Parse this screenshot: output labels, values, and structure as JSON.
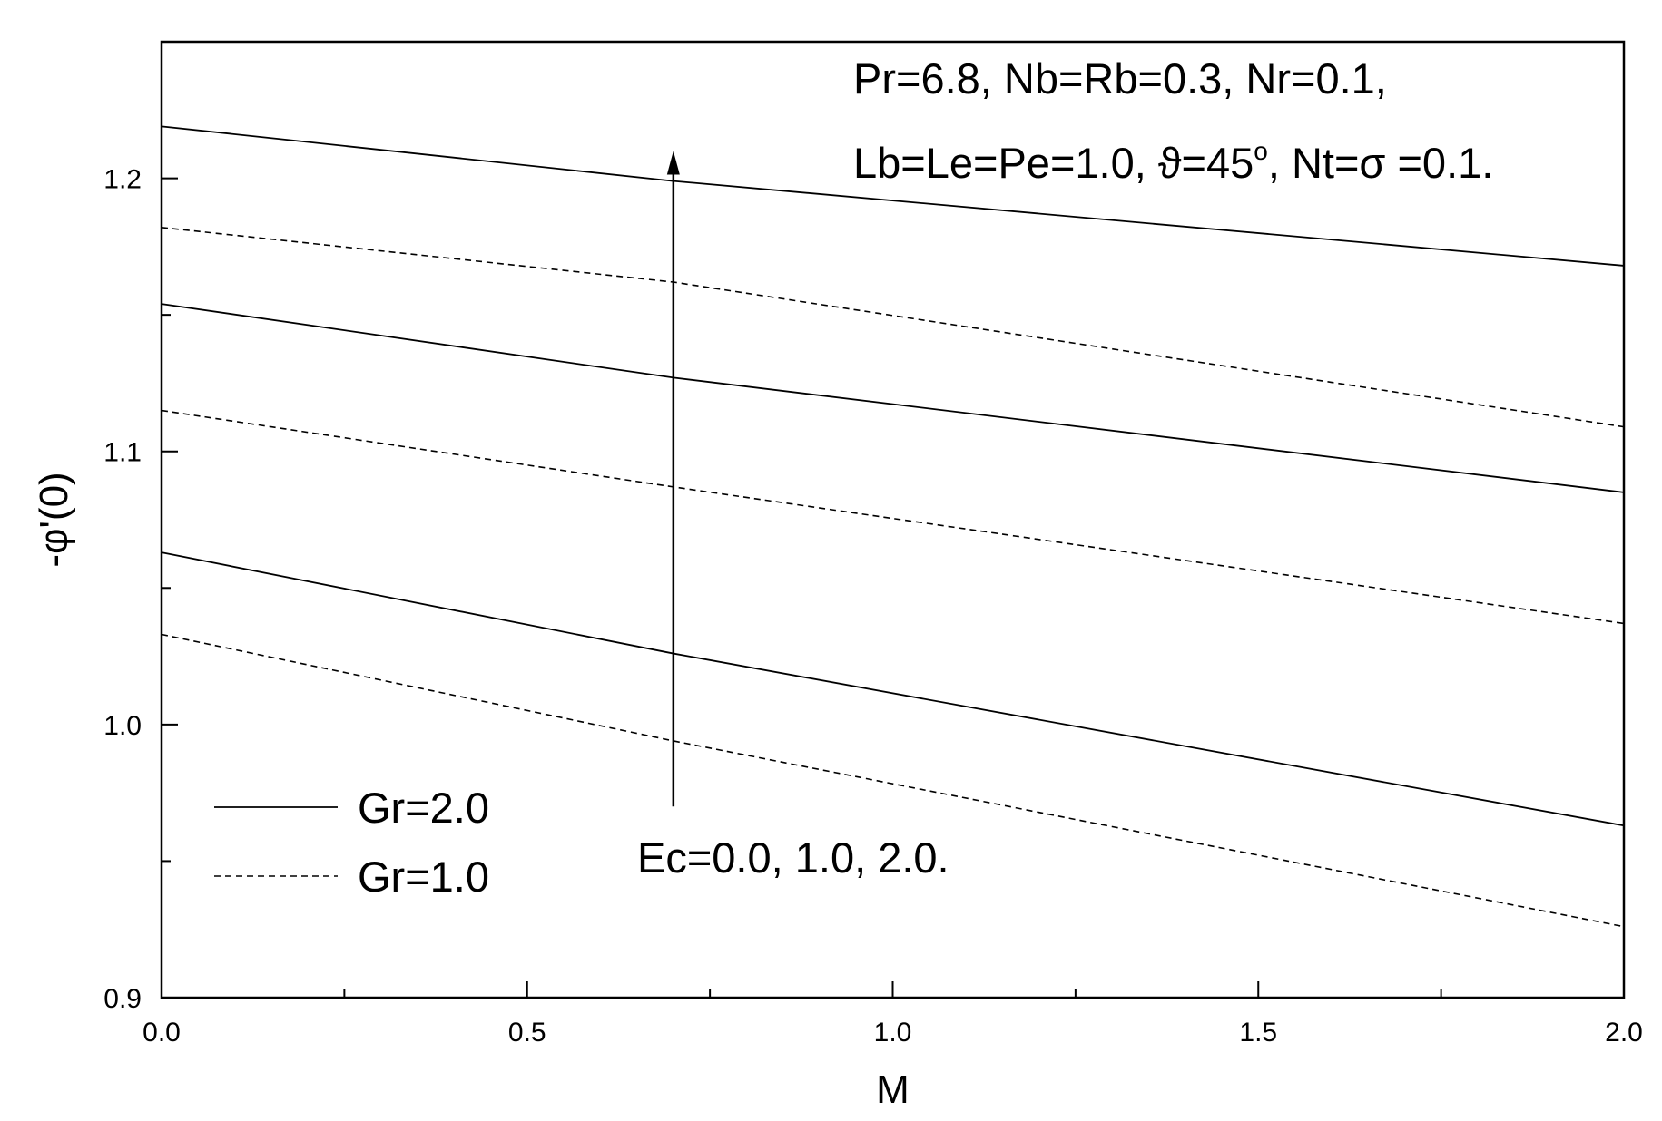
{
  "chart_data": {
    "type": "line",
    "title": "",
    "xlabel": "M",
    "ylabel": "-φ'(0)",
    "xlim": [
      0.0,
      2.0
    ],
    "ylim": [
      0.9,
      1.25
    ],
    "xticks": [
      0.0,
      0.5,
      1.0,
      1.5,
      2.0
    ],
    "xtick_labels": [
      "0.0",
      "0.5",
      "1.0",
      "1.5",
      "2.0"
    ],
    "x_minor_ticks": [
      0.25,
      0.75,
      1.25,
      1.75
    ],
    "yticks": [
      0.9,
      1.0,
      1.1,
      1.2
    ],
    "ytick_labels": [
      "0.9",
      "1.0",
      "1.1",
      "1.2"
    ],
    "y_minor_ticks": [
      0.95,
      1.05,
      1.15
    ],
    "grid": false,
    "x": [
      0.0,
      0.7,
      2.0
    ],
    "series": [
      {
        "group": "Gr=2.0",
        "style": "solid",
        "values": [
          1.219,
          1.199,
          1.168
        ]
      },
      {
        "group": "Gr=1.0",
        "style": "dashed",
        "values": [
          1.182,
          1.162,
          1.109
        ]
      },
      {
        "group": "Gr=2.0",
        "style": "solid",
        "values": [
          1.154,
          1.127,
          1.085
        ]
      },
      {
        "group": "Gr=1.0",
        "style": "dashed",
        "values": [
          1.115,
          1.087,
          1.037
        ]
      },
      {
        "group": "Gr=2.0",
        "style": "solid",
        "values": [
          1.063,
          1.026,
          0.963
        ]
      },
      {
        "group": "Gr=1.0",
        "style": "dashed",
        "values": [
          1.033,
          0.994,
          0.926
        ]
      }
    ],
    "legend": {
      "position": "bottom-left",
      "entries": [
        {
          "label": "Gr=2.0",
          "style": "solid"
        },
        {
          "label": "Gr=1.0",
          "style": "dashed"
        }
      ]
    },
    "annotations": {
      "params_line1": "Pr=6.8, Nb=Rb=0.3, Nr=0.1,",
      "params_line2_a": "Lb=Le=Pe=1.0, ϑ=45",
      "params_line2_sup": "o",
      "params_line2_b": ", Nt=σ =0.1.",
      "arrow_label": "Ec=0.0, 1.0, 2.0.",
      "arrow": {
        "x": 0.7,
        "y_start": 0.97,
        "y_end": 1.21,
        "direction": "up"
      }
    },
    "colors": {
      "line": "#000000",
      "axis": "#000000",
      "background": "#ffffff"
    }
  }
}
